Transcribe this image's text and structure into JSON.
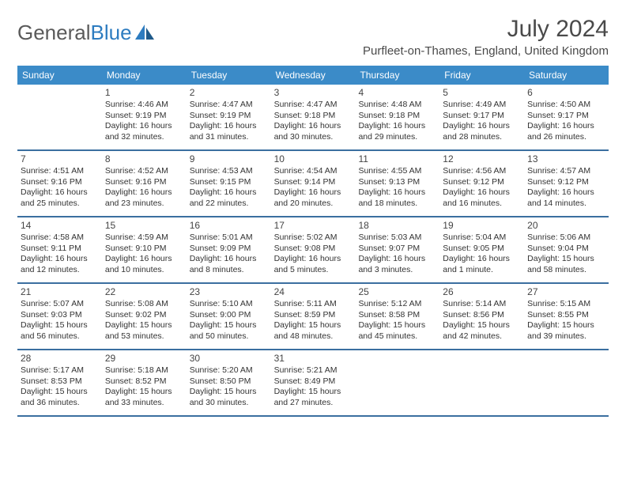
{
  "logo": {
    "text1": "General",
    "text2": "Blue"
  },
  "title": {
    "month": "July 2024",
    "location": "Purfleet-on-Thames, England, United Kingdom"
  },
  "dow": [
    "Sunday",
    "Monday",
    "Tuesday",
    "Wednesday",
    "Thursday",
    "Friday",
    "Saturday"
  ],
  "colors": {
    "header_bg": "#3b8bc8",
    "header_text": "#ffffff",
    "rule": "#3b6fa0",
    "text": "#333333",
    "title_text": "#4a4a4a",
    "logo_gray": "#5a5a5a",
    "logo_blue": "#2d7cc0"
  },
  "weeks": [
    [
      null,
      {
        "n": "1",
        "sr": "4:46 AM",
        "ss": "9:19 PM",
        "dl": "16 hours and 32 minutes."
      },
      {
        "n": "2",
        "sr": "4:47 AM",
        "ss": "9:19 PM",
        "dl": "16 hours and 31 minutes."
      },
      {
        "n": "3",
        "sr": "4:47 AM",
        "ss": "9:18 PM",
        "dl": "16 hours and 30 minutes."
      },
      {
        "n": "4",
        "sr": "4:48 AM",
        "ss": "9:18 PM",
        "dl": "16 hours and 29 minutes."
      },
      {
        "n": "5",
        "sr": "4:49 AM",
        "ss": "9:17 PM",
        "dl": "16 hours and 28 minutes."
      },
      {
        "n": "6",
        "sr": "4:50 AM",
        "ss": "9:17 PM",
        "dl": "16 hours and 26 minutes."
      }
    ],
    [
      {
        "n": "7",
        "sr": "4:51 AM",
        "ss": "9:16 PM",
        "dl": "16 hours and 25 minutes."
      },
      {
        "n": "8",
        "sr": "4:52 AM",
        "ss": "9:16 PM",
        "dl": "16 hours and 23 minutes."
      },
      {
        "n": "9",
        "sr": "4:53 AM",
        "ss": "9:15 PM",
        "dl": "16 hours and 22 minutes."
      },
      {
        "n": "10",
        "sr": "4:54 AM",
        "ss": "9:14 PM",
        "dl": "16 hours and 20 minutes."
      },
      {
        "n": "11",
        "sr": "4:55 AM",
        "ss": "9:13 PM",
        "dl": "16 hours and 18 minutes."
      },
      {
        "n": "12",
        "sr": "4:56 AM",
        "ss": "9:12 PM",
        "dl": "16 hours and 16 minutes."
      },
      {
        "n": "13",
        "sr": "4:57 AM",
        "ss": "9:12 PM",
        "dl": "16 hours and 14 minutes."
      }
    ],
    [
      {
        "n": "14",
        "sr": "4:58 AM",
        "ss": "9:11 PM",
        "dl": "16 hours and 12 minutes."
      },
      {
        "n": "15",
        "sr": "4:59 AM",
        "ss": "9:10 PM",
        "dl": "16 hours and 10 minutes."
      },
      {
        "n": "16",
        "sr": "5:01 AM",
        "ss": "9:09 PM",
        "dl": "16 hours and 8 minutes."
      },
      {
        "n": "17",
        "sr": "5:02 AM",
        "ss": "9:08 PM",
        "dl": "16 hours and 5 minutes."
      },
      {
        "n": "18",
        "sr": "5:03 AM",
        "ss": "9:07 PM",
        "dl": "16 hours and 3 minutes."
      },
      {
        "n": "19",
        "sr": "5:04 AM",
        "ss": "9:05 PM",
        "dl": "16 hours and 1 minute."
      },
      {
        "n": "20",
        "sr": "5:06 AM",
        "ss": "9:04 PM",
        "dl": "15 hours and 58 minutes."
      }
    ],
    [
      {
        "n": "21",
        "sr": "5:07 AM",
        "ss": "9:03 PM",
        "dl": "15 hours and 56 minutes."
      },
      {
        "n": "22",
        "sr": "5:08 AM",
        "ss": "9:02 PM",
        "dl": "15 hours and 53 minutes."
      },
      {
        "n": "23",
        "sr": "5:10 AM",
        "ss": "9:00 PM",
        "dl": "15 hours and 50 minutes."
      },
      {
        "n": "24",
        "sr": "5:11 AM",
        "ss": "8:59 PM",
        "dl": "15 hours and 48 minutes."
      },
      {
        "n": "25",
        "sr": "5:12 AM",
        "ss": "8:58 PM",
        "dl": "15 hours and 45 minutes."
      },
      {
        "n": "26",
        "sr": "5:14 AM",
        "ss": "8:56 PM",
        "dl": "15 hours and 42 minutes."
      },
      {
        "n": "27",
        "sr": "5:15 AM",
        "ss": "8:55 PM",
        "dl": "15 hours and 39 minutes."
      }
    ],
    [
      {
        "n": "28",
        "sr": "5:17 AM",
        "ss": "8:53 PM",
        "dl": "15 hours and 36 minutes."
      },
      {
        "n": "29",
        "sr": "5:18 AM",
        "ss": "8:52 PM",
        "dl": "15 hours and 33 minutes."
      },
      {
        "n": "30",
        "sr": "5:20 AM",
        "ss": "8:50 PM",
        "dl": "15 hours and 30 minutes."
      },
      {
        "n": "31",
        "sr": "5:21 AM",
        "ss": "8:49 PM",
        "dl": "15 hours and 27 minutes."
      },
      null,
      null,
      null
    ]
  ]
}
